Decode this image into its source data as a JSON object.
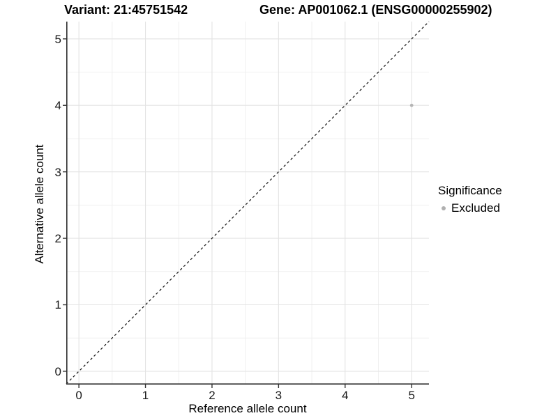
{
  "chart_data": {
    "type": "scatter",
    "title_variant": "Variant: 21:45751542",
    "title_gene": "Gene: AP001062.1 (ENSG00000255902)",
    "xlabel": "Reference allele count",
    "ylabel": "Alternative allele count",
    "xlim": [
      -0.19,
      5.26
    ],
    "ylim": [
      -0.2,
      5.26
    ],
    "xticks": [
      0,
      1,
      2,
      3,
      4,
      5
    ],
    "yticks": [
      0,
      1,
      2,
      3,
      4,
      5
    ],
    "minor_ticks": [
      0.5,
      1.5,
      2.5,
      3.5,
      4.5
    ],
    "grid": true,
    "reference_line": {
      "kind": "identity y=x",
      "style": "dashed",
      "color": "#111111"
    },
    "points": [
      {
        "x": 5,
        "y": 4,
        "series": "Excluded",
        "color": "#b5b5b5",
        "radius": 2.4
      }
    ],
    "legend": {
      "title": "Significance",
      "position": "right",
      "entries": [
        {
          "label": "Excluded",
          "color": "#b0b0b0"
        }
      ]
    },
    "colors": {
      "background": "#ffffff",
      "grid_major": "#e3e3e3",
      "grid_minor": "#f0f0f0",
      "axis_line": "#2e2e2e",
      "tick_mark": "#333333",
      "text": "#1a1a1a"
    }
  }
}
